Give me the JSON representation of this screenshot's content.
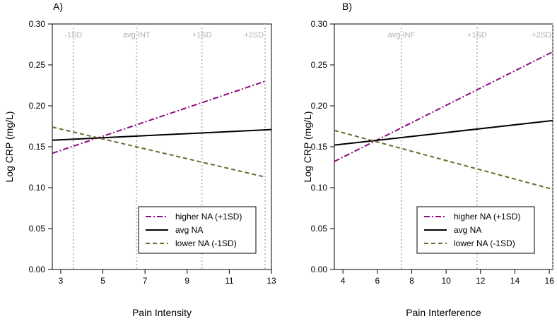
{
  "chart_data": [
    {
      "type": "line",
      "panel_label": "A)",
      "xlabel": "Pain Intensity",
      "ylabel": "Log CRP (mg/L)",
      "xlim": [
        2.6,
        13.0
      ],
      "ylim": [
        0.0,
        0.3
      ],
      "xticks": [
        3,
        5,
        7,
        9,
        11,
        13
      ],
      "yticks": [
        "0.00",
        "0.05",
        "0.10",
        "0.15",
        "0.20",
        "0.25",
        "0.30"
      ],
      "reference_lines": [
        {
          "label": "-1SD",
          "x": 3.6
        },
        {
          "label": "avg INT",
          "x": 6.6
        },
        {
          "label": "+1SD",
          "x": 9.7
        },
        {
          "label": "+2SD",
          "x": 12.7
        }
      ],
      "series": [
        {
          "name": "higher NA (+1SD)",
          "color": "#8b0a82",
          "style": "dashdot",
          "x": [
            2.6,
            12.7
          ],
          "y": [
            0.142,
            0.23
          ]
        },
        {
          "name": "avg NA",
          "color": "#000000",
          "style": "solid",
          "x": [
            2.6,
            13.0
          ],
          "y": [
            0.158,
            0.171
          ]
        },
        {
          "name": "lower NA (-1SD)",
          "color": "#6b6b2a",
          "style": "dashed",
          "x": [
            2.6,
            12.7
          ],
          "y": [
            0.174,
            0.113
          ]
        }
      ],
      "legend": {
        "position": "bottom-right",
        "entries": [
          "higher NA (+1SD)",
          "avg NA",
          "lower NA (-1SD)"
        ]
      }
    },
    {
      "type": "line",
      "panel_label": "B)",
      "xlabel": "Pain Interference",
      "ylabel": "Log CRP (mg/L)",
      "xlim": [
        3.5,
        16.2
      ],
      "ylim": [
        0.0,
        0.3
      ],
      "xticks": [
        4,
        6,
        8,
        10,
        12,
        14,
        16
      ],
      "yticks": [
        "0.00",
        "0.05",
        "0.10",
        "0.15",
        "0.20",
        "0.25",
        "0.30"
      ],
      "reference_lines": [
        {
          "label": "avg INF",
          "x": 7.4
        },
        {
          "label": "+1SD",
          "x": 11.8
        },
        {
          "label": "+2SD",
          "x": 16.2
        }
      ],
      "series": [
        {
          "name": "higher NA (+1SD)",
          "color": "#8b0a82",
          "style": "dashdot",
          "x": [
            3.5,
            16.2
          ],
          "y": [
            0.132,
            0.266
          ]
        },
        {
          "name": "avg NA",
          "color": "#000000",
          "style": "solid",
          "x": [
            3.5,
            16.2
          ],
          "y": [
            0.152,
            0.182
          ]
        },
        {
          "name": "lower NA (-1SD)",
          "color": "#6b6b2a",
          "style": "dashed",
          "x": [
            3.5,
            16.2
          ],
          "y": [
            0.17,
            0.098
          ]
        }
      ],
      "legend": {
        "position": "bottom-right",
        "entries": [
          "higher NA (+1SD)",
          "avg NA",
          "lower NA (-1SD)"
        ]
      }
    }
  ]
}
